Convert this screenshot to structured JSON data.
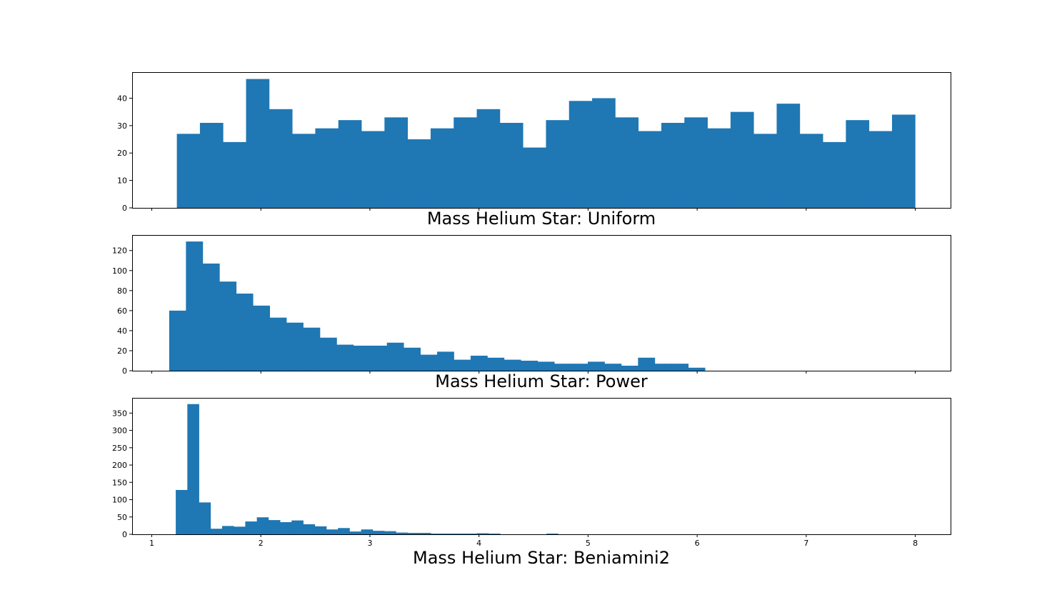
{
  "bar_color": "#1f77b4",
  "chart_data": [
    {
      "type": "bar",
      "title": "Mass Helium Star: Uniform",
      "xlim": [
        0.82,
        8.33
      ],
      "ylim": [
        0,
        49.5
      ],
      "yticks": [
        0,
        10,
        20,
        30,
        40
      ],
      "xticks": [
        1,
        2,
        3,
        4,
        5,
        6,
        7,
        8
      ],
      "show_xtick_labels": false,
      "bin_start": 1.23,
      "bin_width": 0.2115,
      "counts": [
        27,
        31,
        24,
        47,
        36,
        27,
        29,
        32,
        28,
        33,
        25,
        29,
        33,
        36,
        31,
        22,
        32,
        39,
        40,
        33,
        28,
        31,
        33,
        29,
        35,
        27,
        38,
        27,
        24,
        32,
        28,
        34
      ]
    },
    {
      "type": "bar",
      "title": "Mass Helium Star: Power",
      "xlim": [
        0.82,
        8.33
      ],
      "ylim": [
        0,
        135.5
      ],
      "yticks": [
        0,
        20,
        40,
        60,
        80,
        100,
        120
      ],
      "xticks": [
        1,
        2,
        3,
        4,
        5,
        6,
        7,
        8
      ],
      "show_xtick_labels": false,
      "bin_start": 1.16,
      "bin_width": 0.1535,
      "counts": [
        60,
        129,
        107,
        89,
        77,
        65,
        53,
        48,
        43,
        33,
        26,
        25,
        25,
        28,
        23,
        16,
        19,
        11,
        15,
        13,
        11,
        10,
        9,
        7,
        7,
        9,
        7,
        5,
        13,
        7,
        7,
        3
      ]
    },
    {
      "type": "bar",
      "title": "Mass Helium Star: Beniamini2",
      "xlim": [
        0.82,
        8.33
      ],
      "ylim": [
        0,
        394
      ],
      "yticks": [
        0,
        50,
        100,
        150,
        200,
        250,
        300,
        350
      ],
      "xticks": [
        1,
        2,
        3,
        4,
        5,
        6,
        7,
        8
      ],
      "xtick_labels": [
        "1",
        "2",
        "3",
        "4",
        "5",
        "6",
        "7",
        "8"
      ],
      "show_xtick_labels": true,
      "bin_start": 1.22,
      "bin_width": 0.1062,
      "counts": [
        128,
        376,
        92,
        16,
        24,
        22,
        37,
        49,
        41,
        35,
        40,
        29,
        23,
        14,
        18,
        8,
        14,
        10,
        9,
        5,
        4,
        4,
        2,
        2,
        2,
        2,
        3,
        2,
        0,
        0,
        0,
        0,
        2,
        0,
        0,
        0,
        0,
        0,
        0,
        0,
        0,
        0,
        0,
        0,
        0,
        0,
        0,
        0,
        0,
        0
      ]
    }
  ]
}
